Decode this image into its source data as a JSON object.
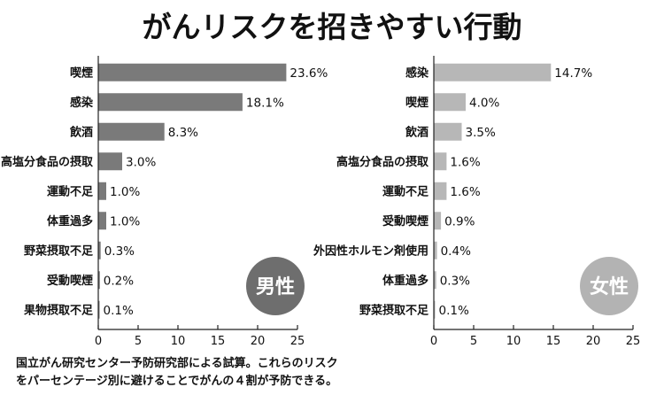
{
  "title": "がんリスクを招きやすい行動",
  "note_lines": [
    "国立がん研究センター予防研究部による試算。これらのリスク",
    "をパーセンテージ別に避けることでがんの４割が予防できる。"
  ],
  "colors": {
    "male_bar": "#7a7a7a",
    "female_bar": "#b7b7b7",
    "male_badge": "#6e6e6e",
    "female_badge": "#b3b3b3"
  },
  "chart_data": [
    {
      "type": "bar",
      "orientation": "horizontal",
      "label": "男性",
      "categories": [
        "喫煙",
        "感染",
        "飲酒",
        "高塩分食品の摂取",
        "運動不足",
        "体重過多",
        "野菜摂取不足",
        "受動喫煙",
        "果物摂取不足"
      ],
      "values": [
        23.6,
        18.1,
        8.3,
        3.0,
        1.0,
        1.0,
        0.3,
        0.2,
        0.1
      ],
      "value_labels": [
        "23.6%",
        "18.1%",
        "8.3%",
        "3.0%",
        "1.0%",
        "1.0%",
        "0.3%",
        "0.2%",
        "0.1%"
      ],
      "xlim": [
        0,
        25
      ],
      "xticks": [
        0,
        5,
        10,
        15,
        20,
        25
      ],
      "grid": false
    },
    {
      "type": "bar",
      "orientation": "horizontal",
      "label": "女性",
      "categories": [
        "感染",
        "喫煙",
        "飲酒",
        "高塩分食品の摂取",
        "運動不足",
        "受動喫煙",
        "外因性ホルモン剤使用",
        "体重過多",
        "野菜摂取不足"
      ],
      "values": [
        14.7,
        4.0,
        3.5,
        1.6,
        1.6,
        0.9,
        0.4,
        0.3,
        0.1
      ],
      "value_labels": [
        "14.7%",
        "4.0%",
        "3.5%",
        "1.6%",
        "1.6%",
        "0.9%",
        "0.4%",
        "0.3%",
        "0.1%"
      ],
      "xlim": [
        0,
        25
      ],
      "xticks": [
        0,
        5,
        10,
        15,
        20,
        25
      ],
      "grid": false
    }
  ]
}
